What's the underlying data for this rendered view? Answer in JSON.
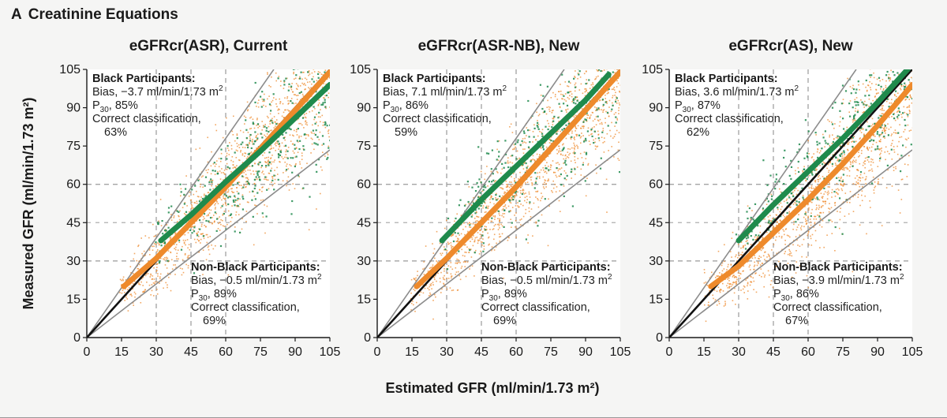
{
  "figure": {
    "panel_letter": "A",
    "panel_title": "Creatinine Equations",
    "xlabel": "Estimated GFR (ml/min/1.73 m²)",
    "ylabel": "Measured GFR (ml/min/1.73 m²)",
    "colors": {
      "black_participants": "#1f8a4c",
      "nonblack_participants": "#ee8a2c",
      "identity_line": "#111111",
      "p30_lines": "#8c8c8c",
      "reference_lines": "#9a9a9a"
    }
  },
  "chart_data": [
    {
      "type": "scatter",
      "title": "eGFRcr(ASR), Current",
      "xlim": [
        0,
        105
      ],
      "ylim": [
        0,
        105
      ],
      "xticks": [
        0,
        15,
        30,
        45,
        60,
        75,
        90,
        105
      ],
      "yticks": [
        0,
        15,
        30,
        45,
        60,
        75,
        90,
        105
      ],
      "grid": "dashed at 30 and 60 (horizontal), 30 and 45 and 60 (vertical)",
      "identity_line": true,
      "p30_lines": true,
      "series": [
        {
          "group": "black",
          "fit": [
            [
              32,
              38
            ],
            [
              45,
              48
            ],
            [
              60,
              61
            ],
            [
              75,
              73
            ],
            [
              90,
              86
            ],
            [
              105,
              99
            ]
          ]
        },
        {
          "group": "nonblack",
          "fit": [
            [
              16,
              20
            ],
            [
              30,
              31
            ],
            [
              45,
              45
            ],
            [
              60,
              59
            ],
            [
              75,
              74
            ],
            [
              90,
              89
            ],
            [
              105,
              104
            ]
          ]
        }
      ],
      "annotations": {
        "black": {
          "heading": "Black Participants:",
          "bias": "Bias, −3.7 ml/min/1.73 m",
          "bias_sup": "2",
          "p30": "P",
          "p30_sub": "30",
          "p30_value": ", 85%",
          "cc_label": "Correct classification,",
          "cc_value": "63%"
        },
        "nonblack": {
          "heading": "Non-Black Participants:",
          "bias": "Bias, −0.5 ml/min/1.73 m",
          "bias_sup": "2",
          "p30": "P",
          "p30_sub": "30",
          "p30_value": ", 89%",
          "cc_label": "Correct classification,",
          "cc_value": "69%"
        }
      }
    },
    {
      "type": "scatter",
      "title": "eGFRcr(ASR-NB), New",
      "xlim": [
        0,
        105
      ],
      "ylim": [
        0,
        105
      ],
      "xticks": [
        0,
        15,
        30,
        45,
        60,
        75,
        90,
        105
      ],
      "yticks": [
        0,
        15,
        30,
        45,
        60,
        75,
        90,
        105
      ],
      "grid": "dashed at 30 and 60 (horizontal), 30 and 45 and 60 (vertical)",
      "identity_line": true,
      "p30_lines": true,
      "series": [
        {
          "group": "black",
          "fit": [
            [
              28,
              38
            ],
            [
              45,
              54
            ],
            [
              60,
              67
            ],
            [
              75,
              80
            ],
            [
              90,
              93
            ],
            [
              100,
              103
            ]
          ]
        },
        {
          "group": "nonblack",
          "fit": [
            [
              17,
              20
            ],
            [
              30,
              31
            ],
            [
              45,
              45
            ],
            [
              60,
              59
            ],
            [
              75,
              74
            ],
            [
              90,
              89
            ],
            [
              105,
              104
            ]
          ]
        }
      ],
      "annotations": {
        "black": {
          "heading": "Black Participants:",
          "bias": "Bias, 7.1 ml/min/1.73 m",
          "bias_sup": "2",
          "p30": "P",
          "p30_sub": "30",
          "p30_value": ", 86%",
          "cc_label": "Correct classification,",
          "cc_value": "59%"
        },
        "nonblack": {
          "heading": "Non-Black Participants:",
          "bias": "Bias, −0.5 ml/min/1.73 m",
          "bias_sup": "2",
          "p30": "P",
          "p30_sub": "30",
          "p30_value": ", 89%",
          "cc_label": "Correct classification,",
          "cc_value": "69%"
        }
      }
    },
    {
      "type": "scatter",
      "title": "eGFRcr(AS), New",
      "xlim": [
        0,
        105
      ],
      "ylim": [
        0,
        105
      ],
      "xticks": [
        0,
        15,
        30,
        45,
        60,
        75,
        90,
        105
      ],
      "yticks": [
        0,
        15,
        30,
        45,
        60,
        75,
        90,
        105
      ],
      "grid": "dashed at 30 and 60 (horizontal), 30 and 45 and 60 (vertical)",
      "identity_line": true,
      "p30_lines": true,
      "series": [
        {
          "group": "black",
          "fit": [
            [
              30,
              38
            ],
            [
              45,
              52
            ],
            [
              60,
              65
            ],
            [
              75,
              78
            ],
            [
              90,
              92
            ],
            [
              103,
              105
            ]
          ]
        },
        {
          "group": "nonblack",
          "fit": [
            [
              18,
              20
            ],
            [
              30,
              28
            ],
            [
              45,
              41
            ],
            [
              60,
              54
            ],
            [
              75,
              68
            ],
            [
              90,
              83
            ],
            [
              105,
              99
            ]
          ]
        }
      ],
      "annotations": {
        "black": {
          "heading": "Black Participants:",
          "bias": "Bias, 3.6 ml/min/1.73 m",
          "bias_sup": "2",
          "p30": "P",
          "p30_sub": "30",
          "p30_value": ", 87%",
          "cc_label": "Correct classification,",
          "cc_value": "62%"
        },
        "nonblack": {
          "heading": "Non-Black Participants:",
          "bias": "Bias, −3.9 ml/min/1.73 m",
          "bias_sup": "2",
          "p30": "P",
          "p30_sub": "30",
          "p30_value": ", 86%",
          "cc_label": "Correct classification,",
          "cc_value": "67%"
        }
      }
    }
  ]
}
